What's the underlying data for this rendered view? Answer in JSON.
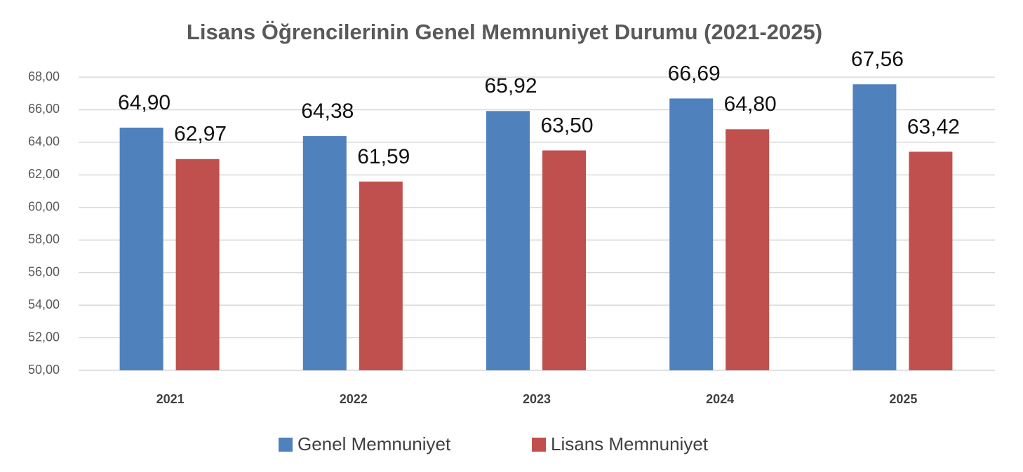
{
  "chart_data": {
    "type": "bar",
    "title": "Lisans Öğrencilerinin Genel Memnuniyet Durumu (2021-2025)",
    "categories": [
      "2021",
      "2022",
      "2023",
      "2024",
      "2025"
    ],
    "series": [
      {
        "name": "Genel Memnuniyet",
        "color": "#4f81bd",
        "values": [
          64.9,
          64.38,
          65.92,
          66.69,
          67.56
        ],
        "value_labels": [
          "64,90",
          "64,38",
          "65,92",
          "66,69",
          "67,56"
        ]
      },
      {
        "name": "Lisans Memnuniyet",
        "color": "#c0504d",
        "values": [
          62.97,
          61.59,
          63.5,
          64.8,
          63.42
        ],
        "value_labels": [
          "62,97",
          "61,59",
          "63,50",
          "64,80",
          "63,42"
        ]
      }
    ],
    "ylim": [
      50,
      68
    ],
    "yticks": [
      {
        "value": 50,
        "label": "50,00"
      },
      {
        "value": 52,
        "label": "52,00"
      },
      {
        "value": 54,
        "label": "54,00"
      },
      {
        "value": 56,
        "label": "56,00"
      },
      {
        "value": 58,
        "label": "58,00"
      },
      {
        "value": 60,
        "label": "60,00"
      },
      {
        "value": 62,
        "label": "62,00"
      },
      {
        "value": 64,
        "label": "64,00"
      },
      {
        "value": 66,
        "label": "66,00"
      },
      {
        "value": 68,
        "label": "68,00"
      }
    ],
    "grid": true,
    "legend": "bottom"
  }
}
